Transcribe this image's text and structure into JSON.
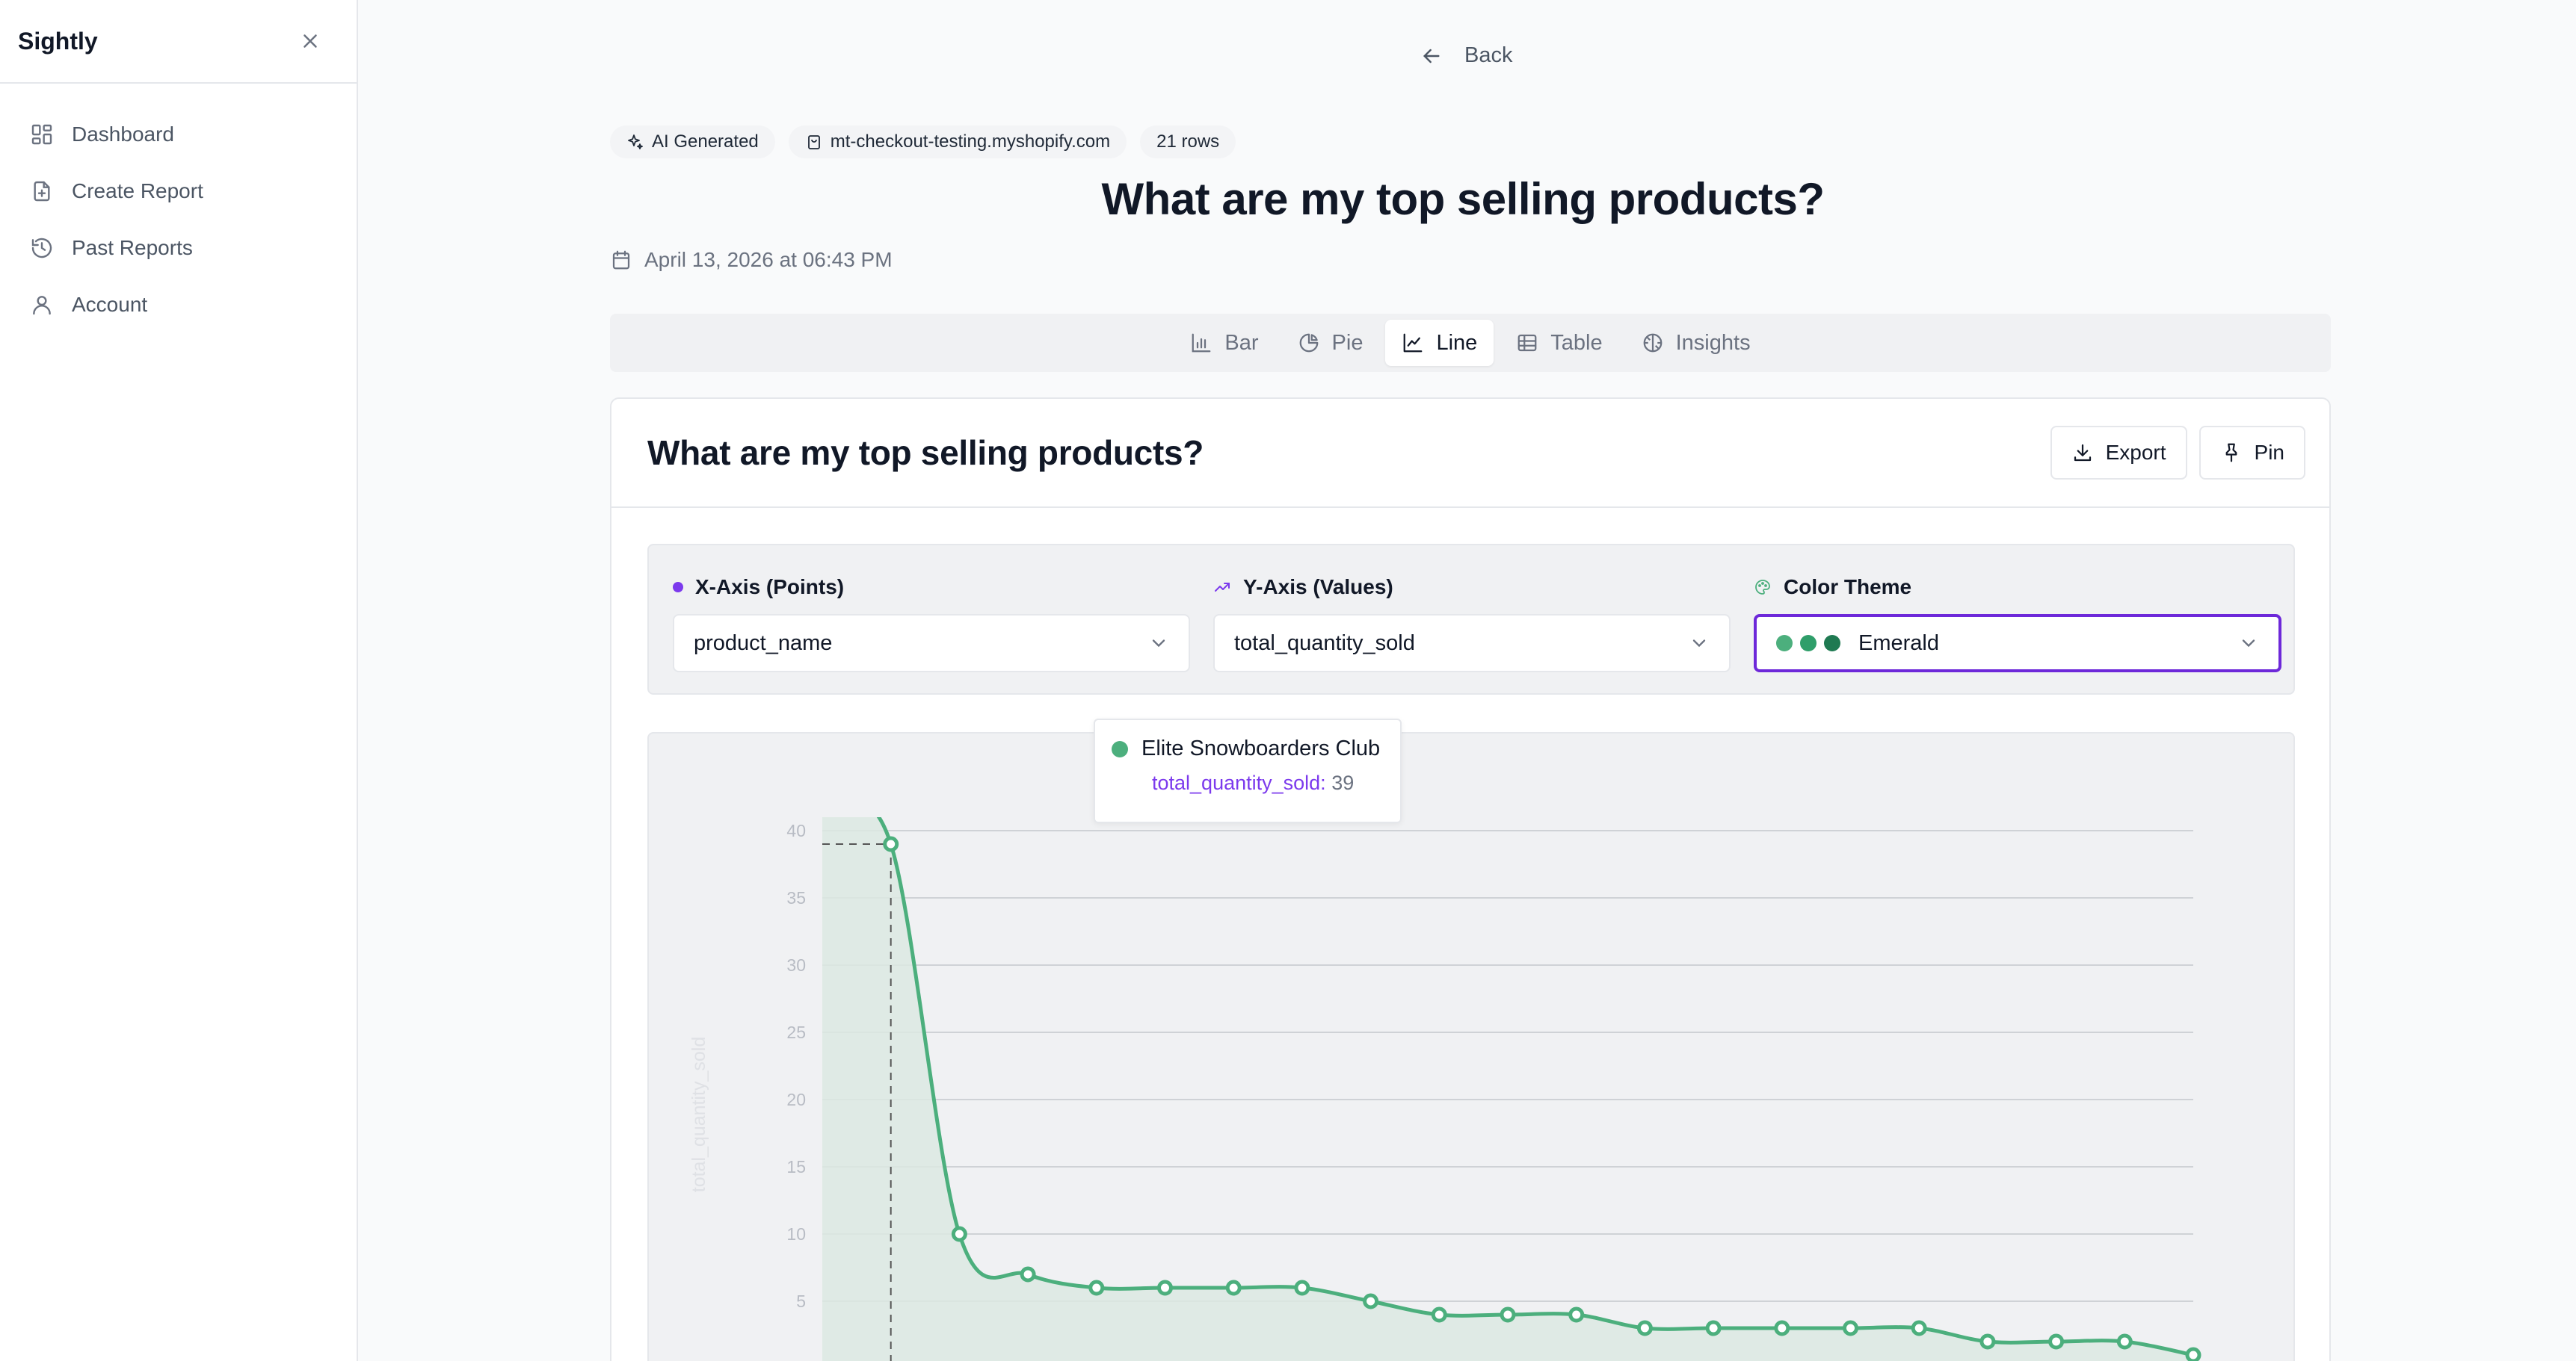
{
  "sidebar": {
    "brand": "Sightly",
    "items": [
      {
        "label": "Dashboard",
        "icon": "dashboard-icon"
      },
      {
        "label": "Create Report",
        "icon": "file-plus-icon"
      },
      {
        "label": "Past Reports",
        "icon": "history-icon"
      },
      {
        "label": "Account",
        "icon": "user-icon"
      }
    ]
  },
  "header": {
    "back_label": "Back",
    "badges": [
      "AI Generated",
      "mt-checkout-testing.myshopify.com",
      "21 rows"
    ],
    "title": "What are my top selling products?",
    "date": "April 13, 2026 at 06:43 PM"
  },
  "tabs": [
    {
      "label": "Bar",
      "active": false
    },
    {
      "label": "Pie",
      "active": false
    },
    {
      "label": "Line",
      "active": true
    },
    {
      "label": "Table",
      "active": false
    },
    {
      "label": "Insights",
      "active": false
    }
  ],
  "card": {
    "title": "What are my top selling products?",
    "export_label": "Export",
    "pin_label": "Pin"
  },
  "controls": {
    "x_axis": {
      "label": "X-Axis (Points)",
      "value": "product_name"
    },
    "y_axis": {
      "label": "Y-Axis (Values)",
      "value": "total_quantity_sold"
    },
    "color_theme": {
      "label": "Color Theme",
      "value": "Emerald",
      "swatches": [
        "#4caf7d",
        "#2f9e6a",
        "#1f7a52"
      ]
    }
  },
  "tooltip": {
    "title": "Elite Snowboarders Club",
    "key": "total_quantity_sold",
    "value": "39"
  },
  "colors": {
    "accent": "#6d28d9",
    "line": "#4caf7d",
    "area": "#dce9e2"
  },
  "chart_data": {
    "type": "line",
    "ylabel": "total_quantity_sold",
    "yticks": [
      "5",
      "10",
      "15",
      "20",
      "25",
      "30",
      "35",
      "40"
    ],
    "ylim": [
      0,
      40
    ],
    "grid": true,
    "values": [
      42,
      39,
      10,
      7,
      6,
      6,
      6,
      6,
      5,
      4,
      4,
      4,
      3,
      3,
      3,
      3,
      3,
      2,
      2,
      2,
      1
    ]
  }
}
